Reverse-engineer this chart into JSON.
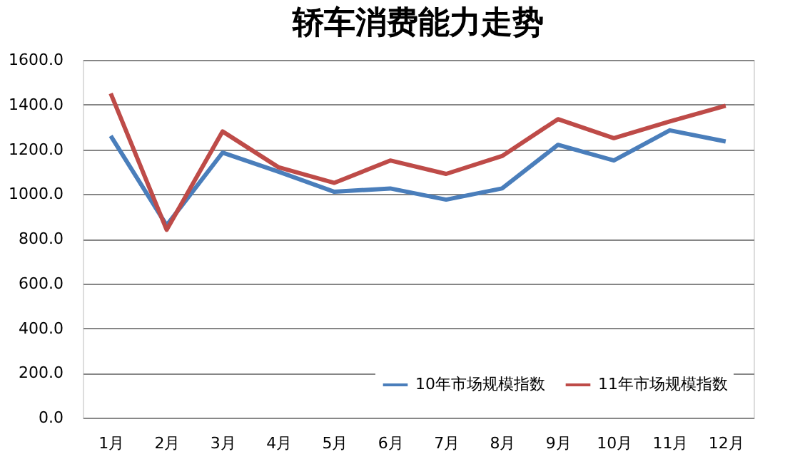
{
  "chart_data": {
    "type": "line",
    "title": "轿车消费能力走势",
    "categories": [
      "1月",
      "2月",
      "3月",
      "4月",
      "5月",
      "6月",
      "7月",
      "8月",
      "9月",
      "10月",
      "11月",
      "12月"
    ],
    "series": [
      {
        "name": "10年市场规模指数",
        "color": "#4a7ebb",
        "values": [
          1260,
          860,
          1185,
          1100,
          1010,
          1025,
          975,
          1025,
          1220,
          1150,
          1285,
          1235
        ]
      },
      {
        "name": "11年市场规模指数",
        "color": "#be4b48",
        "values": [
          1450,
          840,
          1280,
          1120,
          1050,
          1150,
          1090,
          1170,
          1335,
          1250,
          1325,
          1395
        ]
      }
    ],
    "ylim": [
      0,
      1600
    ],
    "yticks": [
      {
        "value": 0,
        "label": "0.0"
      },
      {
        "value": 200,
        "label": "200.0"
      },
      {
        "value": 400,
        "label": "400.0"
      },
      {
        "value": 600,
        "label": "600.0"
      },
      {
        "value": 800,
        "label": "800.0"
      },
      {
        "value": 1000,
        "label": "1000.0"
      },
      {
        "value": 1200,
        "label": "1200.0"
      },
      {
        "value": 1400,
        "label": "1400.0"
      },
      {
        "value": 1600,
        "label": "1600.0"
      }
    ],
    "grid": "y",
    "legend": "bottom right",
    "marker": "none",
    "line_style": "solid"
  }
}
